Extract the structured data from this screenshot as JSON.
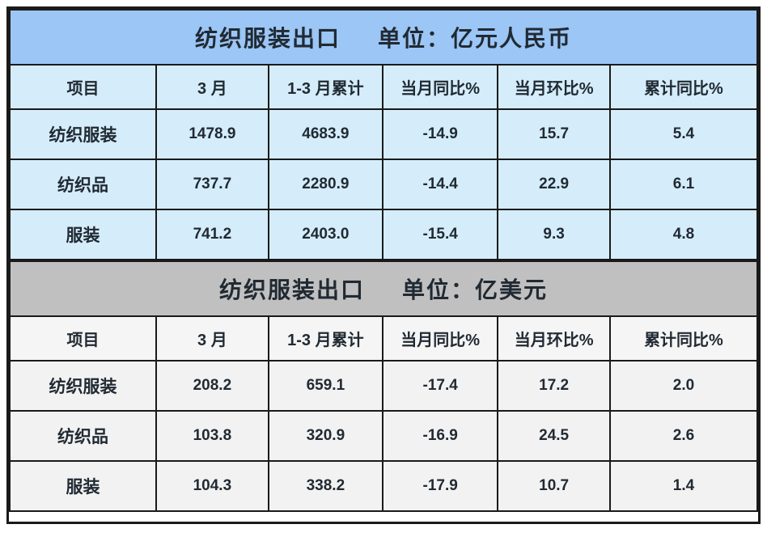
{
  "colors": {
    "title_blue": "#9bc6f5",
    "cell_blue": "#d5edfb",
    "title_gray": "#c0c0c0",
    "cell_gray": "#f2f2f2",
    "border": "#1a1a1a",
    "text": "#212a33"
  },
  "tables": [
    {
      "title": "纺织服装出口",
      "unit": "单位：亿元人民币",
      "columns": [
        "项目",
        "3 月",
        "1-3 月累计",
        "当月同比%",
        "当月环比%",
        "累计同比%"
      ],
      "rows": [
        [
          "纺织服装",
          "1478.9",
          "4683.9",
          "-14.9",
          "15.7",
          "5.4"
        ],
        [
          "纺织品",
          "737.7",
          "2280.9",
          "-14.4",
          "22.9",
          "6.1"
        ],
        [
          "服装",
          "741.2",
          "2403.0",
          "-15.4",
          "9.3",
          "4.8"
        ]
      ]
    },
    {
      "title": "纺织服装出口",
      "unit": "单位：亿美元",
      "columns": [
        "项目",
        "3 月",
        "1-3 月累计",
        "当月同比%",
        "当月环比%",
        "累计同比%"
      ],
      "rows": [
        [
          "纺织服装",
          "208.2",
          "659.1",
          "-17.4",
          "17.2",
          "2.0"
        ],
        [
          "纺织品",
          "103.8",
          "320.9",
          "-16.9",
          "24.5",
          "2.6"
        ],
        [
          "服装",
          "104.3",
          "338.2",
          "-17.9",
          "10.7",
          "1.4"
        ]
      ]
    }
  ]
}
